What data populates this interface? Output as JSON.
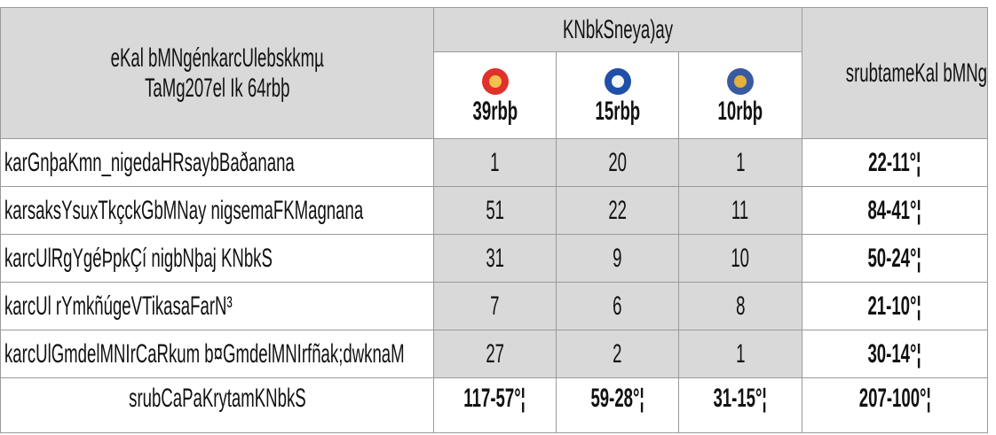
{
  "table": {
    "header": {
      "col1": [
        "eKal bMNgénkarcUlebskkmµ",
        "TaMg207el Ik 64rbþ"
      ],
      "group": "KNbkSneya)ay",
      "parties": [
        "39rbþ",
        "15rbþ",
        "10rbþ"
      ],
      "total": "srubtameKal bMNg"
    },
    "rows": [
      [
        "karGnþaKmn_nigedaHRsaybBaðanana",
        1,
        20,
        1,
        "22-11°¦"
      ],
      [
        "karsaksYsuxTkçckGbMNay nigsemaFKMagnana",
        51,
        22,
        11,
        "84-41°¦"
      ],
      [
        "karcUlRgYgéÞpkÇí nigbNþaj KNbkS",
        31,
        9,
        10,
        "50-24°¦"
      ],
      [
        "karcUl rYmkñúgeVTikasaFarN³",
        7,
        6,
        8,
        "21-10°¦"
      ],
      [
        "karcUlGmdelMNIrCaRkum b¤GmdelMNIrfñak;dwknaM",
        27,
        2,
        1,
        "30-14°¦"
      ]
    ],
    "total_row": [
      "srubCaPaKrytamKNbkS",
      "117-57°¦",
      "59-28°¦",
      "31-15°¦",
      "207-100°¦"
    ]
  }
}
